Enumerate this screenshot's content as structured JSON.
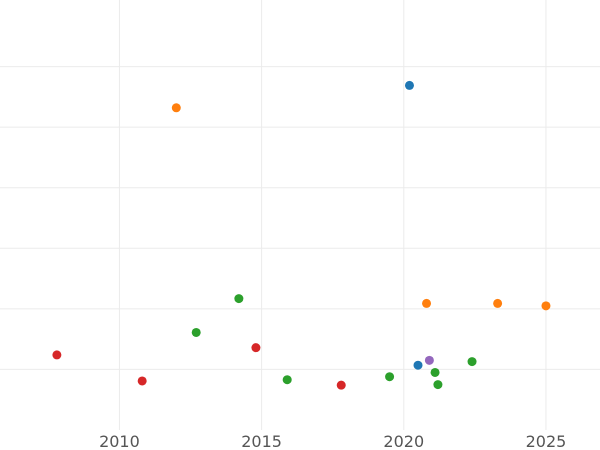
{
  "chart_data": {
    "type": "scatter",
    "title": "",
    "xlabel": "",
    "ylabel": "",
    "xlim": [
      2005.8,
      2026.9
    ],
    "ylim": [
      0,
      7.1
    ],
    "x_ticks": [
      2010,
      2015,
      2020,
      2025
    ],
    "y_gridlines": [
      1,
      2,
      3,
      4,
      5,
      6
    ],
    "grid": true,
    "legend": "none",
    "colors": {
      "blue": "#1f77b4",
      "orange": "#ff7f0e",
      "green": "#2ca02c",
      "red": "#d62728",
      "purple": "#9467bd"
    },
    "points": [
      {
        "x": 2020.2,
        "y": 5.69,
        "color": "blue"
      },
      {
        "x": 2020.5,
        "y": 1.07,
        "color": "blue"
      },
      {
        "x": 2012.0,
        "y": 5.32,
        "color": "orange"
      },
      {
        "x": 2020.8,
        "y": 2.09,
        "color": "orange"
      },
      {
        "x": 2023.3,
        "y": 2.09,
        "color": "orange"
      },
      {
        "x": 2025.0,
        "y": 2.05,
        "color": "orange"
      },
      {
        "x": 2014.2,
        "y": 2.17,
        "color": "green"
      },
      {
        "x": 2012.7,
        "y": 1.61,
        "color": "green"
      },
      {
        "x": 2015.9,
        "y": 0.83,
        "color": "green"
      },
      {
        "x": 2019.5,
        "y": 0.88,
        "color": "green"
      },
      {
        "x": 2021.1,
        "y": 0.95,
        "color": "green"
      },
      {
        "x": 2021.2,
        "y": 0.75,
        "color": "green"
      },
      {
        "x": 2022.4,
        "y": 1.13,
        "color": "green"
      },
      {
        "x": 2007.8,
        "y": 1.24,
        "color": "red"
      },
      {
        "x": 2010.8,
        "y": 0.81,
        "color": "red"
      },
      {
        "x": 2014.8,
        "y": 1.36,
        "color": "red"
      },
      {
        "x": 2017.8,
        "y": 0.74,
        "color": "red"
      },
      {
        "x": 2020.9,
        "y": 1.15,
        "color": "purple"
      }
    ]
  }
}
